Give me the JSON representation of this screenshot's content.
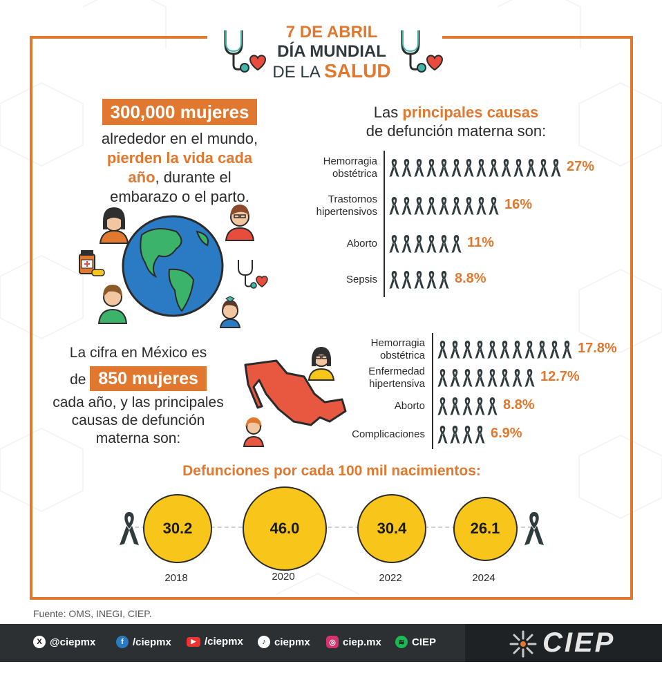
{
  "header": {
    "date": "7 DE ABRIL",
    "line2": "DÍA MUNDIAL",
    "line3_prefix": "DE LA ",
    "line3_highlight": "SALUD"
  },
  "world": {
    "highlight": "300,000 mujeres",
    "line1": "alrededor en el mundo,",
    "line2_orange": "pierden la vida cada",
    "line3_orange": "año",
    "line3_rest": ", durante el",
    "line4": "embarazo o el parto."
  },
  "world_causes": {
    "title_prefix": "Las ",
    "title_orange": "principales causas",
    "title_line2": "de defunción materna son:",
    "items": [
      {
        "label1": "Hemorragia",
        "label2": "obstétrica",
        "pct": "27%",
        "ribbons": 14
      },
      {
        "label1": "Trastornos",
        "label2": "hipertensivos",
        "pct": "16%",
        "ribbons": 9
      },
      {
        "label1": "Aborto",
        "label2": "",
        "pct": "11%",
        "ribbons": 6
      },
      {
        "label1": "Sepsis",
        "label2": "",
        "pct": "8.8%",
        "ribbons": 5
      }
    ]
  },
  "mexico": {
    "line1": "La cifra en México es",
    "line2_prefix": "de ",
    "highlight": "850 mujeres",
    "line3": "cada año, y las principales",
    "line4": "causas de defunción",
    "line5": "materna son:",
    "items": [
      {
        "label1": "Hemorragia",
        "label2": "obstétrica",
        "pct": "17.8%",
        "ribbons": 11
      },
      {
        "label1": "Enfermedad",
        "label2": "hipertensiva",
        "pct": "12.7%",
        "ribbons": 8
      },
      {
        "label1": "Aborto",
        "label2": "",
        "pct": "8.8%",
        "ribbons": 5
      },
      {
        "label1": "Complicaciones",
        "label2": "",
        "pct": "6.9%",
        "ribbons": 4
      }
    ]
  },
  "rates": {
    "title": "Defunciones por cada 100 mil nacimientos:",
    "points": [
      {
        "year": "2018",
        "value": "30.2"
      },
      {
        "year": "2020",
        "value": "46.0"
      },
      {
        "year": "2022",
        "value": "30.4"
      },
      {
        "year": "2024",
        "value": "26.1"
      }
    ]
  },
  "source": "Fuente: OMS, INEGI, CIEP.",
  "social": {
    "x": "@ciepmx",
    "facebook": "/ciepmx",
    "youtube": "/ciepmx",
    "tiktok": "ciepmx",
    "instagram": "ciep.mx",
    "spotify": "CIEP"
  },
  "logo_text": "CIEP",
  "colors": {
    "accent": "#e0782f",
    "yellow": "#f8c61a",
    "dark": "#2d3032",
    "ribbon": "#2f3b3d"
  }
}
